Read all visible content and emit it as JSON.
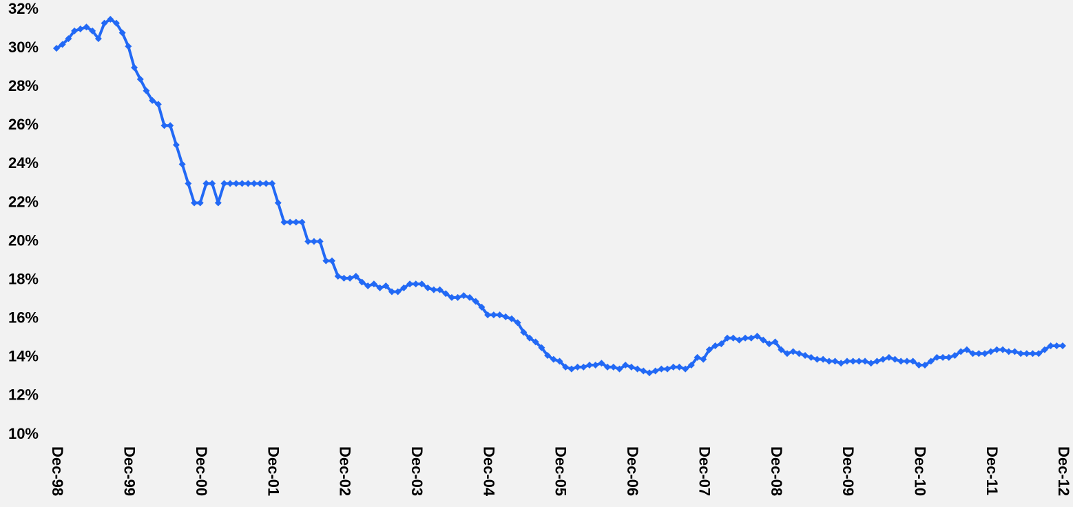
{
  "chart_data": {
    "type": "line",
    "categories": [
      "Dec-98",
      null,
      null,
      null,
      null,
      null,
      null,
      null,
      null,
      null,
      null,
      null,
      "Dec-99",
      null,
      null,
      null,
      null,
      null,
      null,
      null,
      null,
      null,
      null,
      null,
      "Dec-00",
      null,
      null,
      null,
      null,
      null,
      null,
      null,
      null,
      null,
      null,
      null,
      "Dec-01",
      null,
      null,
      null,
      null,
      null,
      null,
      null,
      null,
      null,
      null,
      null,
      "Dec-02",
      null,
      null,
      null,
      null,
      null,
      null,
      null,
      null,
      null,
      null,
      null,
      "Dec-03",
      null,
      null,
      null,
      null,
      null,
      null,
      null,
      null,
      null,
      null,
      null,
      "Dec-04",
      null,
      null,
      null,
      null,
      null,
      null,
      null,
      null,
      null,
      null,
      null,
      "Dec-05",
      null,
      null,
      null,
      null,
      null,
      null,
      null,
      null,
      null,
      null,
      null,
      "Dec-06",
      null,
      null,
      null,
      null,
      null,
      null,
      null,
      null,
      null,
      null,
      null,
      "Dec-07",
      null,
      null,
      null,
      null,
      null,
      null,
      null,
      null,
      null,
      null,
      null,
      "Dec-08",
      null,
      null,
      null,
      null,
      null,
      null,
      null,
      null,
      null,
      null,
      null,
      "Dec-09",
      null,
      null,
      null,
      null,
      null,
      null,
      null,
      null,
      null,
      null,
      null,
      "Dec-10",
      null,
      null,
      null,
      null,
      null,
      null,
      null,
      null,
      null,
      null,
      null,
      "Dec-11",
      null,
      null,
      null,
      null,
      null,
      null,
      null,
      null,
      null,
      null,
      null,
      "Dec-12"
    ],
    "values": [
      30.0,
      30.2,
      30.5,
      30.9,
      31.0,
      31.1,
      30.9,
      30.5,
      31.3,
      31.5,
      31.3,
      30.8,
      30.1,
      29.0,
      28.4,
      27.8,
      27.3,
      27.1,
      26.0,
      26.0,
      25.0,
      24.0,
      23.0,
      22.0,
      22.0,
      23.0,
      23.0,
      22.0,
      23.0,
      23.0,
      23.0,
      23.0,
      23.0,
      23.0,
      23.0,
      23.0,
      23.0,
      22.0,
      21.0,
      21.0,
      21.0,
      21.0,
      20.0,
      20.0,
      20.0,
      19.0,
      19.0,
      18.2,
      18.1,
      18.1,
      18.2,
      17.9,
      17.7,
      17.8,
      17.6,
      17.7,
      17.4,
      17.4,
      17.6,
      17.8,
      17.8,
      17.8,
      17.6,
      17.5,
      17.5,
      17.3,
      17.1,
      17.1,
      17.2,
      17.1,
      16.9,
      16.6,
      16.2,
      16.2,
      16.2,
      16.1,
      16.0,
      15.8,
      15.3,
      15.0,
      14.8,
      14.5,
      14.1,
      13.9,
      13.8,
      13.5,
      13.4,
      13.5,
      13.5,
      13.6,
      13.6,
      13.7,
      13.5,
      13.5,
      13.4,
      13.6,
      13.5,
      13.4,
      13.3,
      13.2,
      13.3,
      13.4,
      13.4,
      13.5,
      13.5,
      13.4,
      13.6,
      14.0,
      13.9,
      14.4,
      14.6,
      14.7,
      15.0,
      15.0,
      14.9,
      15.0,
      15.0,
      15.1,
      14.9,
      14.7,
      14.8,
      14.4,
      14.2,
      14.3,
      14.2,
      14.1,
      14.0,
      13.9,
      13.9,
      13.8,
      13.8,
      13.7,
      13.8,
      13.8,
      13.8,
      13.8,
      13.7,
      13.8,
      13.9,
      14.0,
      13.9,
      13.8,
      13.8,
      13.8,
      13.6,
      13.6,
      13.8,
      14.0,
      14.0,
      14.0,
      14.1,
      14.3,
      14.4,
      14.2,
      14.2,
      14.2,
      14.3,
      14.4,
      14.4,
      14.3,
      14.3,
      14.2,
      14.2,
      14.2,
      14.2,
      14.4,
      14.6,
      14.6,
      14.6
    ],
    "color": "#2269f5",
    "ylim": [
      10,
      32
    ],
    "yticks": [
      {
        "value": 10,
        "label": "10%"
      },
      {
        "value": 12,
        "label": "12%"
      },
      {
        "value": 14,
        "label": "14%"
      },
      {
        "value": 16,
        "label": "16%"
      },
      {
        "value": 18,
        "label": "18%"
      },
      {
        "value": 20,
        "label": "20%"
      },
      {
        "value": 22,
        "label": "22%"
      },
      {
        "value": 24,
        "label": "24%"
      },
      {
        "value": 26,
        "label": "26%"
      },
      {
        "value": 28,
        "label": "28%"
      },
      {
        "value": 30,
        "label": "30%"
      },
      {
        "value": 32,
        "label": "32%"
      }
    ],
    "grid": false,
    "markers": "diamond"
  }
}
